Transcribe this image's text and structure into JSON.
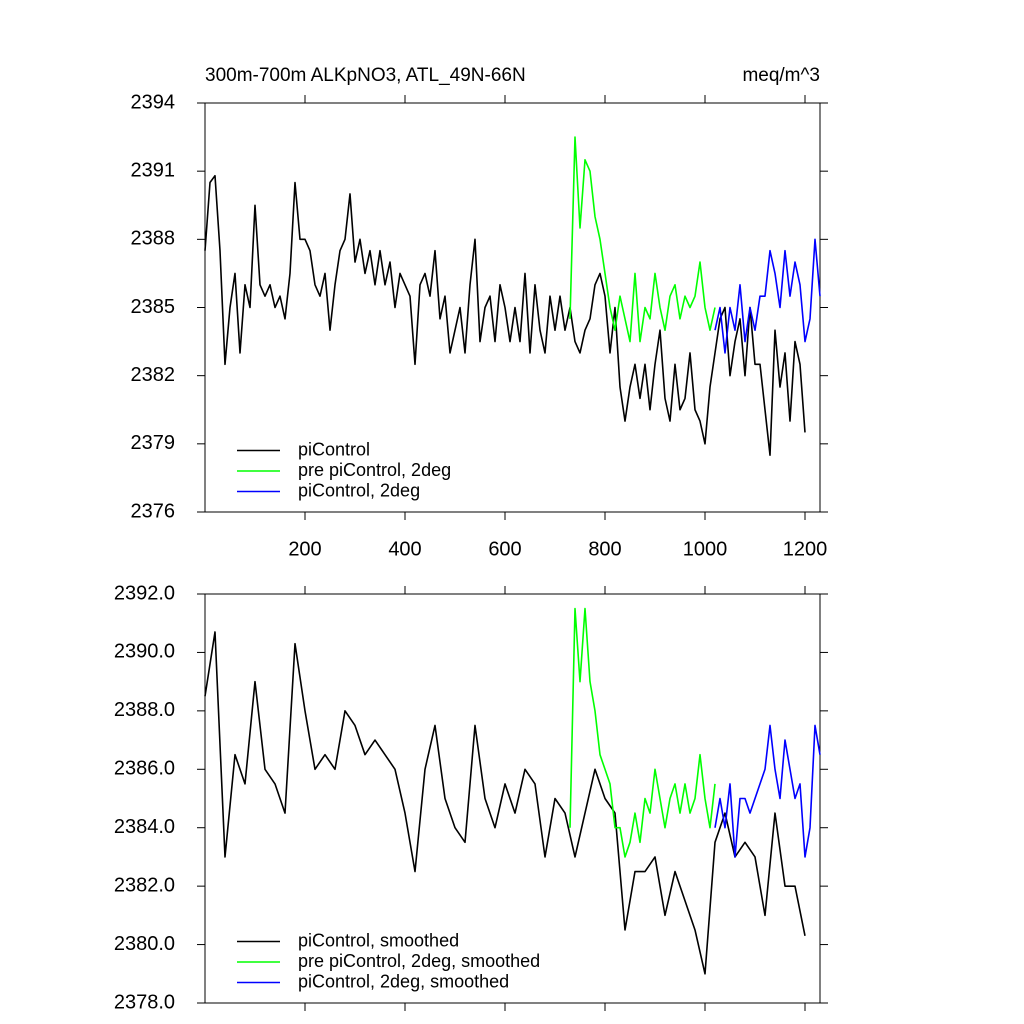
{
  "chart_data": [
    {
      "type": "line",
      "title": "300m-700m ALKpNO3, ATL_49N-66N",
      "unit_label": "meq/m^3",
      "xlim": [
        0,
        1230
      ],
      "xticks": [
        200,
        400,
        600,
        800,
        1000,
        1200
      ],
      "ylim": [
        2376,
        2394
      ],
      "yticks": [
        2376,
        2379,
        2382,
        2385,
        2388,
        2391,
        2394
      ],
      "legend": "lower left",
      "series": [
        {
          "name": "piControl",
          "color": "#000000",
          "x": [
            0,
            10,
            20,
            30,
            40,
            50,
            60,
            70,
            80,
            90,
            100,
            110,
            120,
            130,
            140,
            150,
            160,
            170,
            180,
            190,
            200,
            210,
            220,
            230,
            240,
            250,
            260,
            270,
            280,
            290,
            300,
            310,
            320,
            330,
            340,
            350,
            360,
            370,
            380,
            390,
            400,
            410,
            420,
            430,
            440,
            450,
            460,
            470,
            480,
            490,
            500,
            510,
            520,
            530,
            540,
            550,
            560,
            570,
            580,
            590,
            600,
            610,
            620,
            630,
            640,
            650,
            660,
            670,
            680,
            690,
            700,
            710,
            720,
            730,
            740,
            750,
            760,
            770,
            780,
            790,
            800,
            810,
            820,
            830,
            840,
            850,
            860,
            870,
            880,
            890,
            900,
            910,
            920,
            930,
            940,
            950,
            960,
            970,
            980,
            990,
            1000,
            1010,
            1020,
            1030,
            1040,
            1050,
            1060,
            1070,
            1080,
            1090,
            1100,
            1110,
            1120,
            1130,
            1140,
            1150,
            1160,
            1170,
            1180,
            1190,
            1200
          ],
          "values": [
            2387.5,
            2390.5,
            2390.8,
            2387.5,
            2382.5,
            2385,
            2386.5,
            2383,
            2386,
            2385,
            2389.5,
            2386,
            2385.5,
            2386,
            2385,
            2385.5,
            2384.5,
            2386.5,
            2390.5,
            2388,
            2388,
            2387.5,
            2386,
            2385.5,
            2386.5,
            2384,
            2386,
            2387.5,
            2388,
            2390,
            2387,
            2388,
            2386.5,
            2387.5,
            2386,
            2387.5,
            2386,
            2387,
            2385,
            2386.5,
            2386,
            2385.5,
            2382.5,
            2386,
            2386.5,
            2385.5,
            2387.5,
            2384.5,
            2385.5,
            2383,
            2384,
            2385,
            2383,
            2386,
            2388,
            2383.5,
            2385,
            2385.5,
            2383.5,
            2386,
            2385,
            2383.5,
            2385,
            2383.5,
            2386.5,
            2383,
            2386,
            2384,
            2383,
            2385.5,
            2384,
            2385.5,
            2384,
            2385,
            2383.5,
            2383,
            2384,
            2384.5,
            2386,
            2386.5,
            2385.5,
            2383,
            2385,
            2381.5,
            2380,
            2381.5,
            2382.5,
            2381,
            2382.5,
            2380.5,
            2382.5,
            2384,
            2381,
            2380,
            2382.5,
            2380.5,
            2381,
            2383,
            2380.5,
            2380,
            2379,
            2381.5,
            2383,
            2384.5,
            2385,
            2382,
            2383.5,
            2384.5,
            2382,
            2385,
            2382.5,
            2382.5,
            2380.5,
            2378.5,
            2384,
            2381.5,
            2383,
            2380,
            2383.5,
            2382.5,
            2379.5
          ]
        },
        {
          "name": "pre piControl, 2deg",
          "color": "#00ff00",
          "x": [
            730,
            740,
            750,
            760,
            770,
            780,
            790,
            800,
            810,
            820,
            830,
            840,
            850,
            860,
            870,
            880,
            890,
            900,
            910,
            920,
            930,
            940,
            950,
            960,
            970,
            980,
            990,
            1000,
            1010,
            1020
          ],
          "values": [
            2384.5,
            2392.5,
            2388.5,
            2391.5,
            2391,
            2389,
            2388,
            2386.5,
            2385,
            2384,
            2385.5,
            2384.5,
            2383.5,
            2386.5,
            2383.5,
            2385,
            2384.5,
            2386.5,
            2385,
            2384,
            2385.5,
            2386,
            2384.5,
            2385.5,
            2385,
            2385.5,
            2387,
            2385,
            2384,
            2385
          ]
        },
        {
          "name": "piControl, 2deg",
          "color": "#0000ff",
          "x": [
            1020,
            1030,
            1040,
            1050,
            1060,
            1070,
            1080,
            1090,
            1100,
            1110,
            1120,
            1130,
            1140,
            1150,
            1160,
            1170,
            1180,
            1190,
            1200,
            1210,
            1220,
            1230
          ],
          "values": [
            2384,
            2385,
            2383,
            2385,
            2384,
            2386,
            2383.5,
            2385,
            2384,
            2385.5,
            2385.5,
            2387.5,
            2386.5,
            2385,
            2387.5,
            2385.5,
            2387,
            2386,
            2383.5,
            2384.5,
            2388,
            2385.5
          ]
        }
      ]
    },
    {
      "type": "line",
      "xlim": [
        0,
        1230
      ],
      "xticks": [
        200,
        400,
        600,
        800,
        1000,
        1200
      ],
      "ylim": [
        2378,
        2392
      ],
      "yticks": [
        {
          "value": 2378,
          "label": "2378.0"
        },
        {
          "value": 2380,
          "label": "2380.0"
        },
        {
          "value": 2382,
          "label": "2382.0"
        },
        {
          "value": 2384,
          "label": "2384.0"
        },
        {
          "value": 2386,
          "label": "2386.0"
        },
        {
          "value": 2388,
          "label": "2388.0"
        },
        {
          "value": 2390,
          "label": "2390.0"
        },
        {
          "value": 2392,
          "label": "2392.0"
        }
      ],
      "legend": "lower left",
      "series": [
        {
          "name": "piControl, smoothed",
          "color": "#000000",
          "x": [
            0,
            20,
            40,
            60,
            80,
            100,
            120,
            140,
            160,
            180,
            200,
            220,
            240,
            260,
            280,
            300,
            320,
            340,
            360,
            380,
            400,
            420,
            440,
            460,
            480,
            500,
            520,
            540,
            560,
            580,
            600,
            620,
            640,
            660,
            680,
            700,
            720,
            740,
            760,
            780,
            800,
            820,
            840,
            860,
            880,
            900,
            920,
            940,
            960,
            980,
            1000,
            1020,
            1040,
            1060,
            1080,
            1100,
            1120,
            1140,
            1160,
            1180,
            1200
          ],
          "values": [
            2388.5,
            2390.7,
            2383,
            2386.5,
            2385.5,
            2389,
            2386,
            2385.5,
            2384.5,
            2390.3,
            2388,
            2386,
            2386.5,
            2386,
            2388,
            2387.5,
            2386.5,
            2387,
            2386.5,
            2386,
            2384.5,
            2382.5,
            2386,
            2387.5,
            2385,
            2384,
            2383.5,
            2387.5,
            2385,
            2384,
            2385.5,
            2384.5,
            2386,
            2385.5,
            2383,
            2385,
            2384.5,
            2383,
            2384.5,
            2386,
            2385,
            2384.5,
            2380.5,
            2382.5,
            2382.5,
            2383,
            2381,
            2382.5,
            2381.5,
            2380.5,
            2379,
            2383.5,
            2384.5,
            2383,
            2383.5,
            2383,
            2381,
            2384.5,
            2382,
            2382,
            2380.3
          ]
        },
        {
          "name": "pre piControl, 2deg, smoothed",
          "color": "#00ff00",
          "x": [
            730,
            740,
            750,
            760,
            770,
            780,
            790,
            800,
            810,
            820,
            830,
            840,
            850,
            860,
            870,
            880,
            890,
            900,
            910,
            920,
            930,
            940,
            950,
            960,
            970,
            980,
            990,
            1000,
            1010,
            1020
          ],
          "values": [
            2384,
            2391.5,
            2389,
            2391.5,
            2389,
            2388,
            2386.5,
            2386,
            2385.5,
            2384,
            2384,
            2383,
            2383.5,
            2384.5,
            2383.5,
            2385,
            2384.5,
            2386,
            2385,
            2384,
            2385,
            2385.5,
            2384.5,
            2385.5,
            2384.5,
            2385,
            2386.5,
            2385,
            2384,
            2385.5
          ]
        },
        {
          "name": "piControl, 2deg, smoothed",
          "color": "#0000ff",
          "x": [
            1020,
            1030,
            1040,
            1050,
            1060,
            1070,
            1080,
            1090,
            1100,
            1110,
            1120,
            1130,
            1140,
            1150,
            1160,
            1170,
            1180,
            1190,
            1200,
            1210,
            1220,
            1230
          ],
          "values": [
            2384,
            2385,
            2384,
            2385.5,
            2383,
            2385,
            2385,
            2384.5,
            2385,
            2385.5,
            2386,
            2387.5,
            2386,
            2385,
            2387,
            2386,
            2385,
            2385.5,
            2383,
            2384,
            2387.5,
            2386.5
          ]
        }
      ]
    }
  ]
}
